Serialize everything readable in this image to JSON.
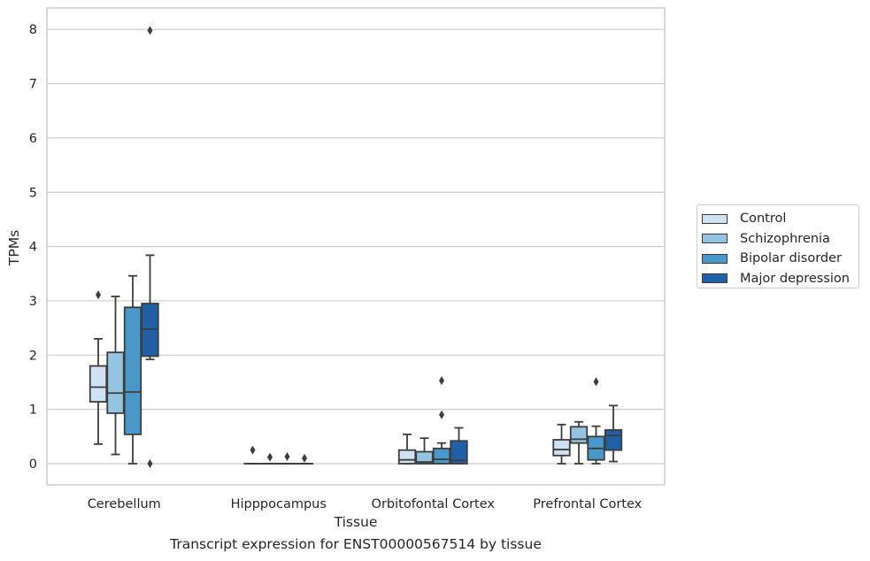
{
  "chart_data": {
    "type": "boxplot",
    "title": "",
    "caption": "Transcript expression for ENST00000567514 by tissue",
    "xlabel": "Tissue",
    "ylabel": "TPMs",
    "ylim": [
      -0.4,
      8.4
    ],
    "yticks": [
      0,
      1,
      2,
      3,
      4,
      5,
      6,
      7,
      8
    ],
    "grid": "horizontal",
    "legend_position": "right",
    "categories": [
      "Cerebellum",
      "Hipppocampus",
      "Orbitofontal Cortex",
      "Prefrontal Cortex"
    ],
    "series": [
      {
        "name": "Control",
        "color": "#d0e1f2",
        "boxes": [
          {
            "whislo": 0.36,
            "q1": 1.14,
            "med": 1.41,
            "q3": 1.8,
            "whishi": 2.3,
            "fliers": [
              3.11
            ]
          },
          {
            "whislo": 0.0,
            "q1": 0.0,
            "med": 0.0,
            "q3": 0.0,
            "whishi": 0.0,
            "fliers": [
              0.25
            ]
          },
          {
            "whislo": 0.0,
            "q1": 0.0,
            "med": 0.07,
            "q3": 0.25,
            "whishi": 0.54,
            "fliers": []
          },
          {
            "whislo": 0.0,
            "q1": 0.15,
            "med": 0.26,
            "q3": 0.44,
            "whishi": 0.72,
            "fliers": []
          }
        ]
      },
      {
        "name": "Schizophrenia",
        "color": "#94c4df",
        "boxes": [
          {
            "whislo": 0.17,
            "q1": 0.93,
            "med": 1.3,
            "q3": 2.05,
            "whishi": 3.08,
            "fliers": []
          },
          {
            "whislo": 0.0,
            "q1": 0.0,
            "med": 0.0,
            "q3": 0.0,
            "whishi": 0.0,
            "fliers": [
              0.12
            ]
          },
          {
            "whislo": 0.0,
            "q1": 0.0,
            "med": 0.03,
            "q3": 0.22,
            "whishi": 0.47,
            "fliers": []
          },
          {
            "whislo": 0.0,
            "q1": 0.38,
            "med": 0.45,
            "q3": 0.68,
            "whishi": 0.77,
            "fliers": []
          }
        ]
      },
      {
        "name": "Bipolar disorder",
        "color": "#4a98c9",
        "boxes": [
          {
            "whislo": 0.0,
            "q1": 0.54,
            "med": 1.32,
            "q3": 2.88,
            "whishi": 3.46,
            "fliers": []
          },
          {
            "whislo": 0.0,
            "q1": 0.0,
            "med": 0.0,
            "q3": 0.0,
            "whishi": 0.0,
            "fliers": [
              0.13
            ]
          },
          {
            "whislo": 0.0,
            "q1": 0.0,
            "med": 0.08,
            "q3": 0.28,
            "whishi": 0.38,
            "fliers": [
              1.53,
              0.9
            ]
          },
          {
            "whislo": 0.0,
            "q1": 0.07,
            "med": 0.28,
            "q3": 0.5,
            "whishi": 0.69,
            "fliers": [
              1.51
            ]
          }
        ]
      },
      {
        "name": "Major depression",
        "color": "#2060a7",
        "boxes": [
          {
            "whislo": 1.92,
            "q1": 1.98,
            "med": 2.48,
            "q3": 2.95,
            "whishi": 3.84,
            "fliers": [
              7.98,
              0.0
            ]
          },
          {
            "whislo": 0.0,
            "q1": 0.0,
            "med": 0.0,
            "q3": 0.0,
            "whishi": 0.0,
            "fliers": [
              0.1
            ]
          },
          {
            "whislo": 0.0,
            "q1": 0.0,
            "med": 0.06,
            "q3": 0.42,
            "whishi": 0.66,
            "fliers": []
          },
          {
            "whislo": 0.04,
            "q1": 0.25,
            "med": 0.52,
            "q3": 0.62,
            "whishi": 1.07,
            "fliers": []
          }
        ]
      }
    ]
  }
}
